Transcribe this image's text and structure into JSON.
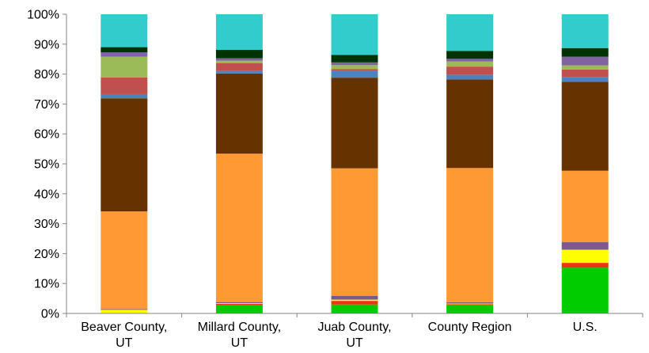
{
  "chart_data": {
    "type": "bar",
    "stacked": true,
    "percent": true,
    "categories": [
      [
        "Beaver County,",
        "UT"
      ],
      [
        "Millard County,",
        "UT"
      ],
      [
        "Juab County,",
        "UT"
      ],
      [
        "County Region"
      ],
      [
        "U.S."
      ]
    ],
    "ylim": [
      0,
      100
    ],
    "yticks": [
      "0%",
      "10%",
      "20%",
      "30%",
      "40%",
      "50%",
      "60%",
      "70%",
      "80%",
      "90%",
      "100%"
    ],
    "grid": false,
    "legend": "none",
    "series": [
      {
        "color": "#00cc00",
        "values": [
          0,
          2.8,
          3.0,
          2.8,
          15.3
        ]
      },
      {
        "color": "#ee3311",
        "values": [
          0,
          0.4,
          1.2,
          0.3,
          1.6
        ]
      },
      {
        "color": "#ffff00",
        "values": [
          1.2,
          0.2,
          0.4,
          0.2,
          4.4
        ]
      },
      {
        "color": "#7a5c8c",
        "values": [
          0.3,
          0.4,
          1.3,
          0.4,
          2.5
        ]
      },
      {
        "color": "#ff9933",
        "values": [
          32.6,
          49.6,
          42.6,
          44.9,
          23.9
        ]
      },
      {
        "color": "#663300",
        "values": [
          37.8,
          26.8,
          30.3,
          29.6,
          29.7
        ]
      },
      {
        "color": "#4f81bd",
        "values": [
          1.4,
          0.8,
          2.4,
          1.6,
          1.5
        ]
      },
      {
        "color": "#c0504d",
        "values": [
          5.6,
          2.7,
          0.5,
          2.7,
          2.6
        ]
      },
      {
        "color": "#9bbb59",
        "values": [
          6.9,
          0.8,
          1.3,
          1.7,
          1.4
        ]
      },
      {
        "color": "#8064a2",
        "values": [
          1.5,
          0.8,
          0.9,
          0.9,
          2.9
        ]
      },
      {
        "color": "#003300",
        "values": [
          1.7,
          2.8,
          2.5,
          2.6,
          2.9
        ]
      },
      {
        "color": "#33cccc",
        "values": [
          11.0,
          11.9,
          13.6,
          12.3,
          11.3
        ]
      }
    ]
  }
}
